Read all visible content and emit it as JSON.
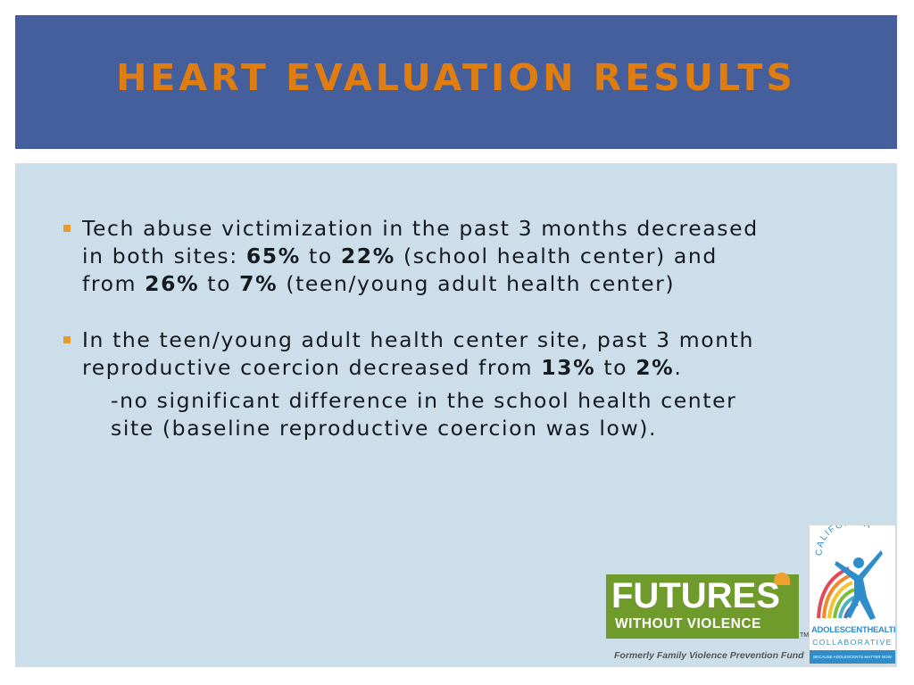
{
  "slide": {
    "title": "HEART EVALUATION RESULTS",
    "bullets": [
      {
        "t1": "Tech abuse victimization in the past 3 months decreased in both sites: ",
        "b1": "65%",
        "t2": " to ",
        "b2": "22%",
        "t3": " (school health center) and from ",
        "b3": "26%",
        "t4": " to ",
        "b4": "7%",
        "t5": " (teen/young adult health center)"
      },
      {
        "t1": "In the teen/young adult health center site, past 3 month reproductive coercion decreased from ",
        "b1": "13%",
        "t2": " to ",
        "b2": "2%",
        "t3": ".",
        "sub": "-no significant difference in the school health center site (baseline reproductive coercion was low)."
      }
    ]
  },
  "logos": {
    "futures": {
      "word": "FUTURES",
      "subtitle": "WITHOUT VIOLENCE",
      "trademark": "TM",
      "formerly": "Formerly Family Violence Prevention Fund"
    },
    "ahc": {
      "california": "CALIFORNIA",
      "name_part1": "ADOLESCENT",
      "name_part2": "HEALTH",
      "collaborative": "COLLABORATIVE",
      "tagline": "BECAUSE ADOLESCENTS MATTER NOW"
    }
  },
  "colors": {
    "header_bg": "#445f9b",
    "title": "#e07d10",
    "content_bg": "#ccdee9",
    "bullet_marker": "#e99a2e",
    "futures_green": "#6f9a2c",
    "ahc_blue": "#2f8ec9"
  }
}
